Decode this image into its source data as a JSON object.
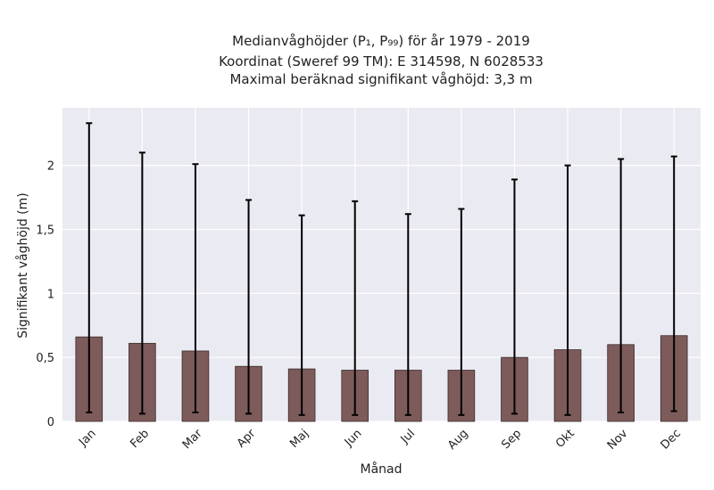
{
  "chart_data": {
    "type": "bar",
    "title_lines": [
      "Medianvåghöjder (P₁, P₉₉) för år 1979 - 2019",
      "Koordinat (Sweref 99 TM): E 314598, N 6028533",
      "Maximal beräknad signifikant våghöjd: 3,3 m"
    ],
    "xlabel": "Månad",
    "ylabel": "Signifikant våghöjd (m)",
    "categories": [
      "Jan",
      "Feb",
      "Mar",
      "Apr",
      "Maj",
      "Jun",
      "Jul",
      "Aug",
      "Sep",
      "Okt",
      "Nov",
      "Dec"
    ],
    "values": [
      0.66,
      0.61,
      0.55,
      0.43,
      0.41,
      0.4,
      0.4,
      0.4,
      0.5,
      0.56,
      0.6,
      0.67
    ],
    "p1": [
      0.07,
      0.06,
      0.07,
      0.06,
      0.05,
      0.05,
      0.05,
      0.05,
      0.06,
      0.05,
      0.07,
      0.08
    ],
    "p99": [
      2.33,
      2.1,
      2.01,
      1.73,
      1.61,
      1.72,
      1.62,
      1.66,
      1.89,
      2.0,
      2.05,
      2.07
    ],
    "ylim": [
      0,
      2.45
    ],
    "yticks": [
      0,
      0.5,
      1,
      1.5,
      2
    ],
    "ytick_labels": [
      "0",
      "0,5",
      "1",
      "1,5",
      "2"
    ],
    "grid": true,
    "colors": {
      "bar": "#7d5b5b",
      "bar_edge": "#3a2a2a",
      "error": "#000000",
      "plot_bg": "#eaeaf2",
      "grid": "#ffffff"
    }
  }
}
